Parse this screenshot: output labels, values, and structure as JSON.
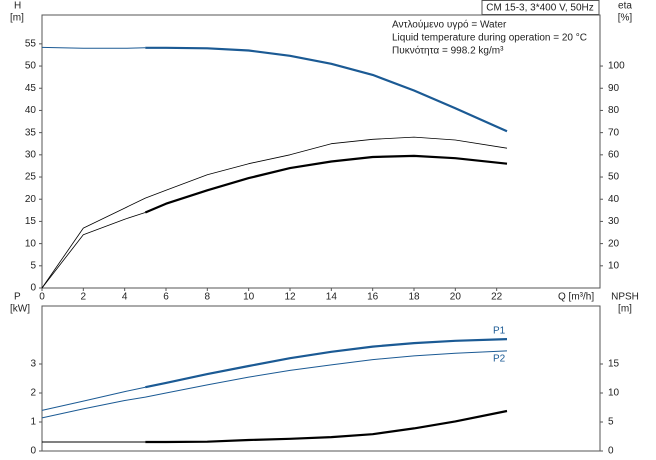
{
  "chart_data": [
    {
      "type": "line",
      "title": "CM 15-3, 3*400 V, 50Hz",
      "annotations": [
        "Αντλούμενο υγρό = Water",
        "Liquid temperature during operation = 20 °C",
        "Πυκνότητα = 998.2 kg/m³"
      ],
      "ylabel": [
        "H",
        "[m]"
      ],
      "y2label": [
        "eta",
        "[%]"
      ],
      "xlabel": "Q [m³/h]",
      "x": [
        0,
        2,
        4,
        5,
        6,
        8,
        10,
        12,
        14,
        16,
        18,
        20,
        22.5
      ],
      "xlim": [
        0,
        27
      ],
      "xticks": [
        0,
        2,
        4,
        6,
        8,
        10,
        12,
        14,
        16,
        18,
        20,
        22
      ],
      "ylim": [
        0,
        61.5
      ],
      "yticks": [
        0,
        5,
        10,
        15,
        20,
        25,
        30,
        35,
        40,
        45,
        50,
        55
      ],
      "y2lim": [
        0,
        123
      ],
      "y2ticks": [
        10,
        20,
        30,
        40,
        50,
        60,
        70,
        80,
        90,
        100
      ],
      "series": [
        {
          "color": "#1b5a94",
          "width": 1,
          "values": [
            54.2,
            54,
            54,
            54.1,
            null,
            null,
            null,
            null,
            null,
            null,
            null,
            null,
            null
          ]
        },
        {
          "color": "#1b5a94",
          "width": 2.2,
          "values": [
            null,
            null,
            null,
            54.1,
            54.1,
            54,
            53.5,
            52.3,
            50.5,
            48,
            44.5,
            40.5,
            35.3
          ]
        },
        {
          "color": "#000000",
          "width": 0.8,
          "axis": "y2",
          "values": [
            0,
            27,
            36,
            40.5,
            44,
            51,
            56,
            60,
            65,
            67,
            68,
            66.7,
            63
          ]
        },
        {
          "color": "#000000",
          "width": 0.8,
          "axis": "y2",
          "values": [
            0,
            24,
            31,
            34,
            null,
            null,
            null,
            null,
            null,
            null,
            null,
            null,
            null
          ]
        },
        {
          "color": "#000000",
          "width": 2.2,
          "axis": "y2",
          "values": [
            null,
            null,
            null,
            34,
            38,
            44,
            49.5,
            54,
            57,
            59,
            59.5,
            58.5,
            56
          ]
        }
      ]
    },
    {
      "type": "line",
      "ylabel": [
        "P",
        "[kW]"
      ],
      "y2label": [
        "NPSH",
        "[m]"
      ],
      "x": [
        0,
        2,
        4,
        5,
        6,
        8,
        10,
        12,
        14,
        16,
        18,
        20,
        22.5
      ],
      "xlim": [
        0,
        27
      ],
      "ylim": [
        0,
        5
      ],
      "yticks": [
        0,
        1,
        2,
        3
      ],
      "y2lim": [
        0,
        25
      ],
      "y2ticks": [
        0,
        5,
        10,
        15
      ],
      "series": [
        {
          "color": "#1b5a94",
          "width": 1,
          "values": [
            1.4,
            1.72,
            2.05,
            2.2,
            null,
            null,
            null,
            null,
            null,
            null,
            null,
            null,
            null
          ]
        },
        {
          "name": "P1",
          "color": "#1b5a94",
          "width": 2.2,
          "values": [
            null,
            null,
            null,
            2.2,
            2.35,
            2.65,
            2.93,
            3.2,
            3.42,
            3.6,
            3.72,
            3.8,
            3.86
          ]
        },
        {
          "name": "P2",
          "color": "#1b5a94",
          "width": 1,
          "values": [
            1.14,
            1.45,
            1.74,
            1.86,
            2.0,
            2.28,
            2.55,
            2.78,
            2.97,
            3.15,
            3.28,
            3.37,
            3.45
          ]
        },
        {
          "color": "#000000",
          "width": 1,
          "axis": "y2",
          "values": [
            1.55,
            1.55,
            1.55,
            1.55,
            null,
            null,
            null,
            null,
            null,
            null,
            null,
            null,
            null
          ]
        },
        {
          "color": "#000000",
          "width": 2.2,
          "axis": "y2",
          "values": [
            null,
            null,
            null,
            1.55,
            1.55,
            1.6,
            1.9,
            2.1,
            2.4,
            2.9,
            3.9,
            5.1,
            6.9
          ]
        }
      ]
    }
  ]
}
